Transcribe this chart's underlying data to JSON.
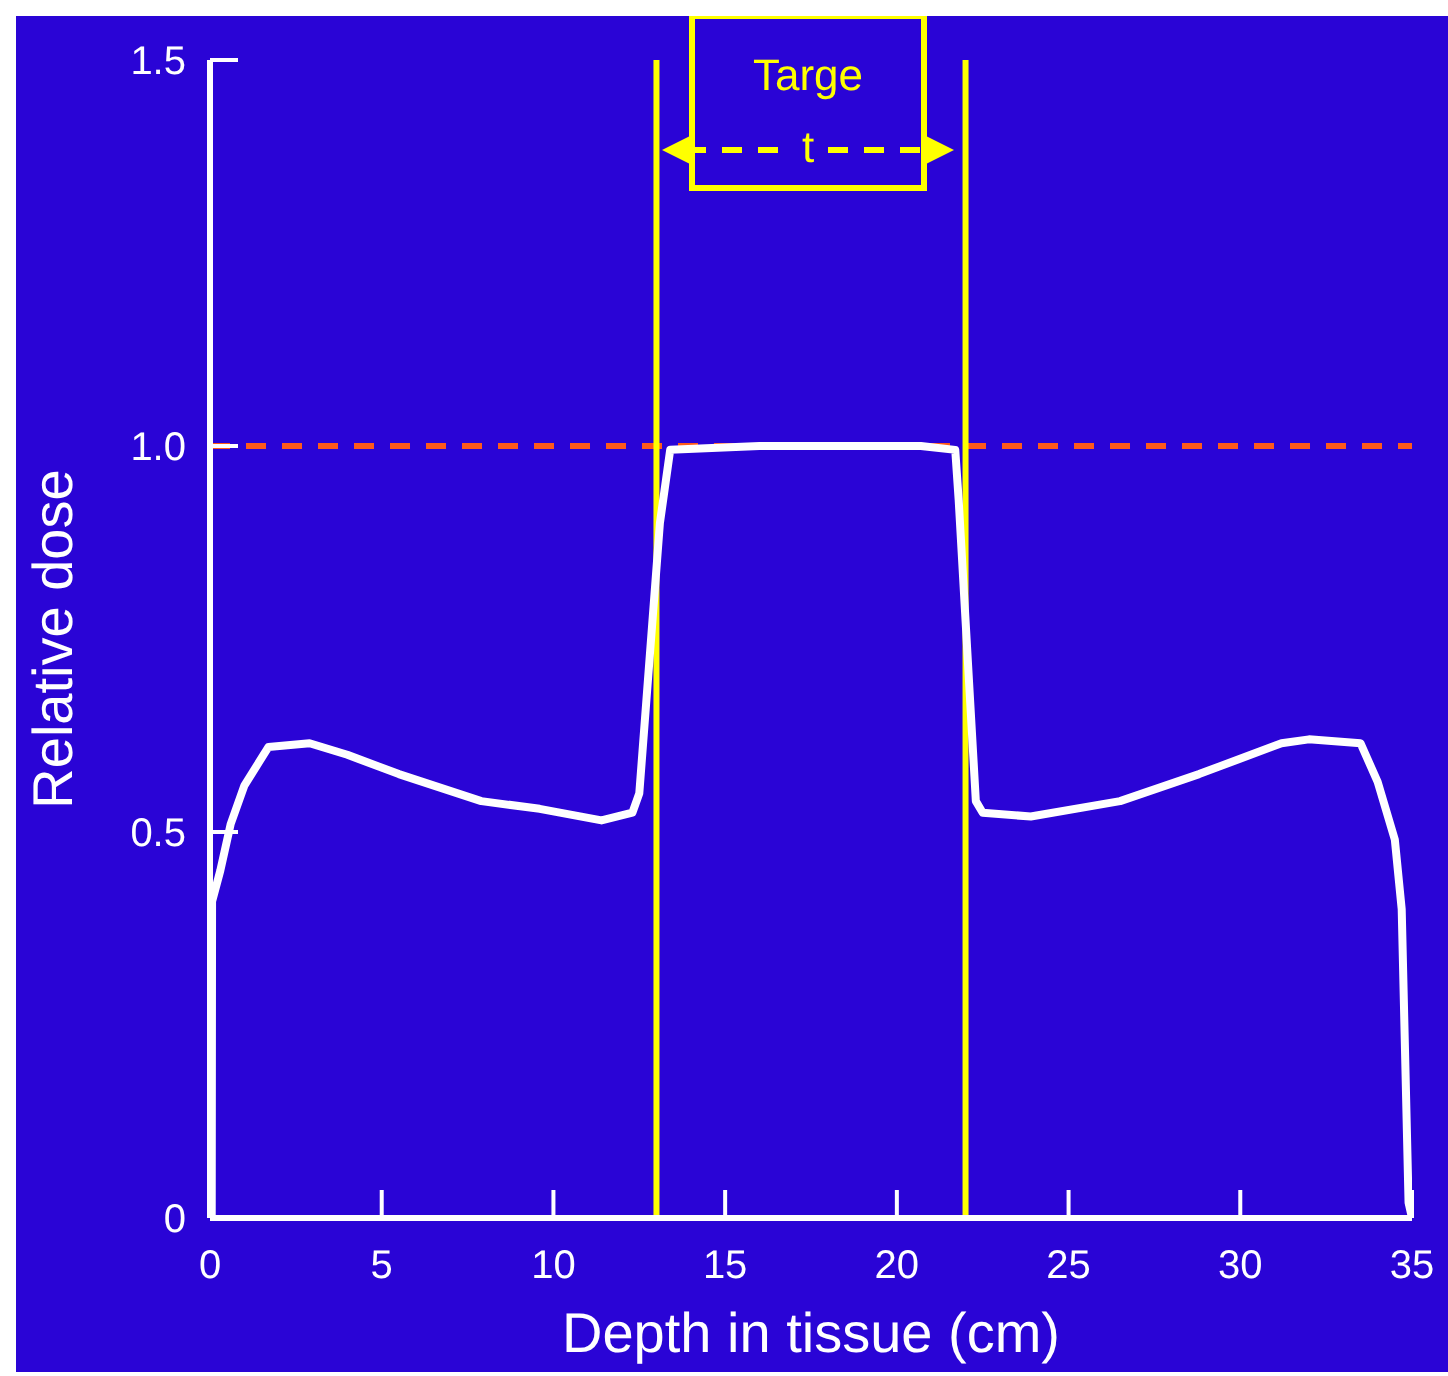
{
  "chart_data": {
    "type": "line",
    "xlabel": "Depth in tissue (cm)",
    "ylabel": "Relative dose",
    "x": [
      0.05,
      0.06,
      0.3,
      0.6,
      1.0,
      1.7,
      2.9,
      4.0,
      5.5,
      7.9,
      9.6,
      11.4,
      12.3,
      12.5,
      13.1,
      13.4,
      16.0,
      20.7,
      21.7,
      21.8,
      22.3,
      22.5,
      23.9,
      26.5,
      28.8,
      31.2,
      32.0,
      33.5,
      34.0,
      34.5,
      34.7,
      34.9,
      35.0
    ],
    "series": [
      {
        "color": "#ffffff",
        "values": [
          0,
          0.41,
          0.45,
          0.51,
          0.56,
          0.61,
          0.615,
          0.6,
          0.575,
          0.54,
          0.53,
          0.515,
          0.525,
          0.55,
          0.9,
          0.995,
          1.0,
          1.0,
          0.995,
          0.93,
          0.54,
          0.525,
          0.52,
          0.54,
          0.575,
          0.615,
          0.62,
          0.615,
          0.565,
          0.49,
          0.4,
          0.02,
          0
        ]
      }
    ],
    "xlim": [
      0,
      35
    ],
    "xticks": [
      0,
      5,
      10,
      15,
      20,
      25,
      30,
      35
    ],
    "ylim": [
      0,
      1.5
    ],
    "yticks": [
      0,
      {
        "value": 0.5,
        "label": "0.5"
      },
      {
        "value": 1.0,
        "label": "1.0"
      },
      1.5
    ],
    "marker": "none",
    "line_style": "solid",
    "grid": false,
    "legend": false,
    "ref_lines": [
      {
        "axis": "y",
        "value": 1.0,
        "color": "#ff5a1a",
        "line_style": "dashed"
      },
      {
        "axis": "x",
        "value": 13,
        "color": "#ffff00",
        "line_style": "solid"
      },
      {
        "axis": "x",
        "value": 22,
        "color": "#ffff00",
        "line_style": "solid"
      }
    ],
    "annotations": [
      "Targe\nt"
    ]
  }
}
